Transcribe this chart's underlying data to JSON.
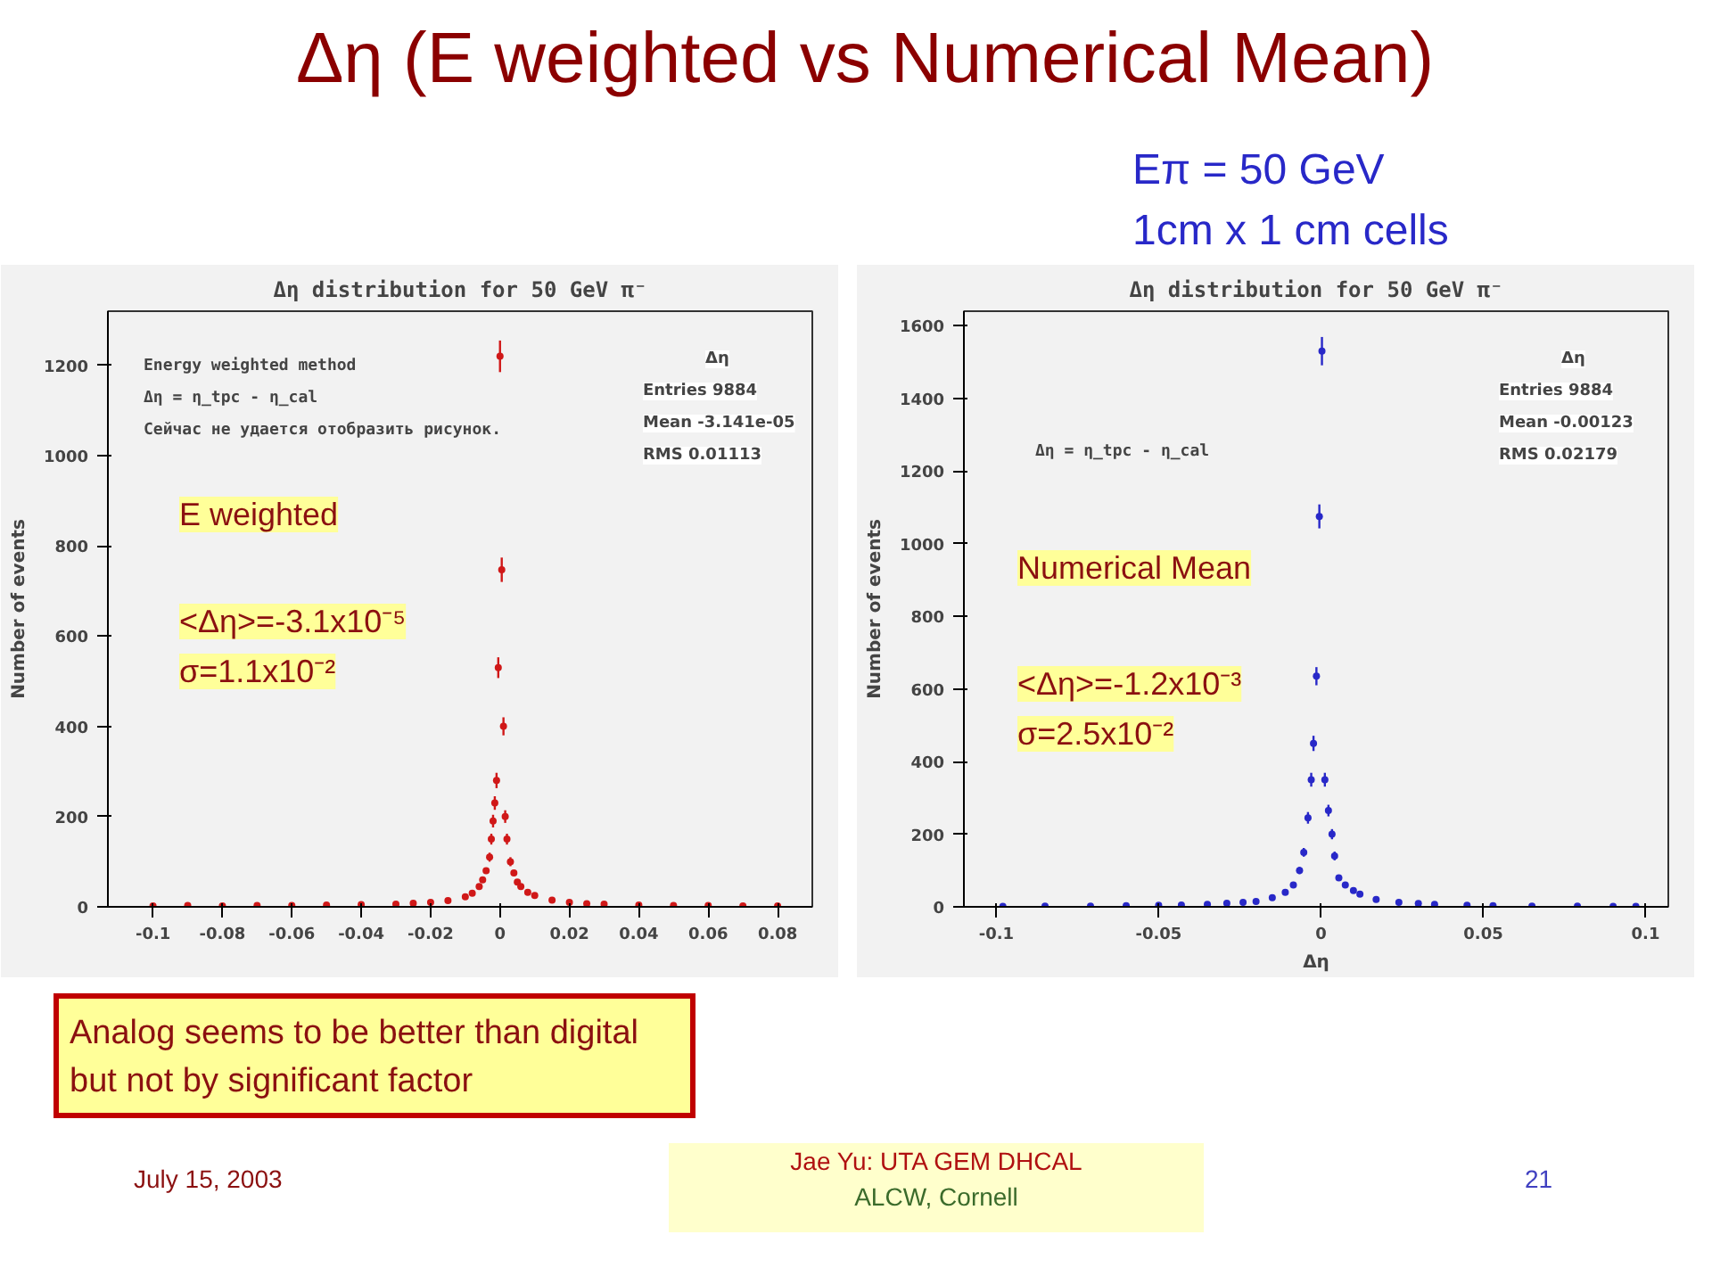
{
  "chart_data": [
    {
      "type": "other",
      "title": "Δη (E weighted vs Numerical Mean)",
      "annotations": [
        "Eπ = 50 GeV",
        "1cm x 1 cm cells",
        "Analog seems to be better than digital but not by significant factor",
        "July 15, 2003",
        "Jae Yu: UTA GEM DHCAL",
        "ALCW, Cornell",
        "21"
      ]
    },
    {
      "type": "scatter",
      "title": "Δη distribution for 50 GeV π⁻",
      "ylabel": "Number of events",
      "marker": "circle",
      "grid": false,
      "xlim": [
        -0.113,
        0.09
      ],
      "xticks": [
        -0.1,
        -0.08,
        -0.06,
        -0.04,
        -0.02,
        0,
        0.02,
        0.04,
        0.06,
        0.08
      ],
      "ylim": [
        0,
        1320
      ],
      "yticks": [
        0,
        200,
        400,
        600,
        800,
        1000,
        1200
      ],
      "annotations": [
        "Energy weighted method",
        "Δη = η_tpc - η_cal",
        "Сейчас не удается отобразить рисунок.",
        "Δη",
        "Entries 9884",
        "Mean -3.141e-05",
        "RMS 0.01113",
        "E weighted",
        "<Δη>=-3.1x10⁻⁵",
        "σ=1.1x10⁻²"
      ],
      "series": [
        {
          "color": "#d01818",
          "x": [
            -0.1,
            -0.09,
            -0.08,
            -0.07,
            -0.06,
            -0.05,
            -0.04,
            -0.03,
            -0.025,
            -0.02,
            -0.015,
            -0.01,
            -0.008,
            -0.006,
            -0.005,
            -0.004,
            -0.003,
            -0.0025,
            -0.002,
            -0.0015,
            -0.001,
            -0.0005,
            0,
            0.0005,
            0.001,
            0.0015,
            0.002,
            0.003,
            0.004,
            0.005,
            0.006,
            0.008,
            0.01,
            0.015,
            0.02,
            0.025,
            0.03,
            0.04,
            0.05,
            0.06,
            0.07,
            0.08
          ],
          "values": [
            2,
            3,
            2,
            3,
            3,
            4,
            5,
            6,
            8,
            10,
            14,
            22,
            30,
            45,
            60,
            80,
            110,
            150,
            190,
            230,
            280,
            530,
            1220,
            747,
            400,
            200,
            150,
            100,
            75,
            55,
            45,
            32,
            25,
            15,
            10,
            7,
            6,
            4,
            3,
            3,
            2,
            2
          ],
          "errors": [
            null,
            null,
            null,
            null,
            null,
            null,
            null,
            null,
            null,
            null,
            null,
            null,
            null,
            null,
            null,
            null,
            10,
            12,
            14,
            15,
            17,
            23,
            35,
            27,
            20,
            14,
            12,
            10,
            null,
            null,
            null,
            null,
            null,
            null,
            null,
            null,
            null,
            null,
            null,
            null,
            null,
            null
          ]
        }
      ]
    },
    {
      "type": "scatter",
      "title": "Δη distribution for 50 GeV π⁻",
      "xlabel": "Δη",
      "ylabel": "Number of events",
      "marker": "circle",
      "grid": false,
      "xlim": [
        -0.11,
        0.107
      ],
      "xticks": [
        -0.1,
        -0.05,
        0,
        0.05,
        0.1
      ],
      "ylim": [
        0,
        1640
      ],
      "yticks": [
        0,
        200,
        400,
        600,
        800,
        1000,
        1200,
        1400,
        1600
      ],
      "annotations": [
        "Δη = η_tpc - η_cal",
        "Δη",
        "Entries 9884",
        "Mean -0.00123",
        "RMS 0.02179",
        "Numerical Mean",
        "<Δη>=-1.2x10⁻³",
        "σ=2.5x10⁻²"
      ],
      "series": [
        {
          "color": "#2828c8",
          "x": [
            -0.098,
            -0.085,
            -0.071,
            -0.06,
            -0.05,
            -0.043,
            -0.035,
            -0.029,
            -0.024,
            -0.02,
            -0.015,
            -0.011,
            -0.0085,
            -0.0066,
            -0.0053,
            -0.004,
            -0.003,
            -0.0023,
            -0.0014,
            -0.0005,
            0.0003,
            0.0012,
            0.0023,
            0.0034,
            0.0042,
            0.0055,
            0.0075,
            0.01,
            0.012,
            0.017,
            0.024,
            0.03,
            0.035,
            0.045,
            0.053,
            0.065,
            0.079,
            0.09,
            0.097
          ],
          "values": [
            1,
            2,
            2,
            3,
            4,
            5,
            7,
            10,
            12,
            15,
            25,
            40,
            60,
            100,
            150,
            245,
            350,
            450,
            635,
            1075,
            1530,
            350,
            265,
            200,
            140,
            80,
            60,
            45,
            35,
            20,
            12,
            9,
            7,
            4,
            3,
            2,
            2,
            1,
            1
          ],
          "errors": [
            null,
            null,
            null,
            null,
            null,
            null,
            null,
            null,
            null,
            null,
            null,
            null,
            null,
            10,
            12,
            16,
            19,
            21,
            25,
            33,
            39,
            19,
            16,
            14,
            12,
            null,
            null,
            null,
            null,
            null,
            null,
            null,
            null,
            null,
            null,
            null,
            null,
            null,
            null
          ]
        }
      ]
    }
  ]
}
